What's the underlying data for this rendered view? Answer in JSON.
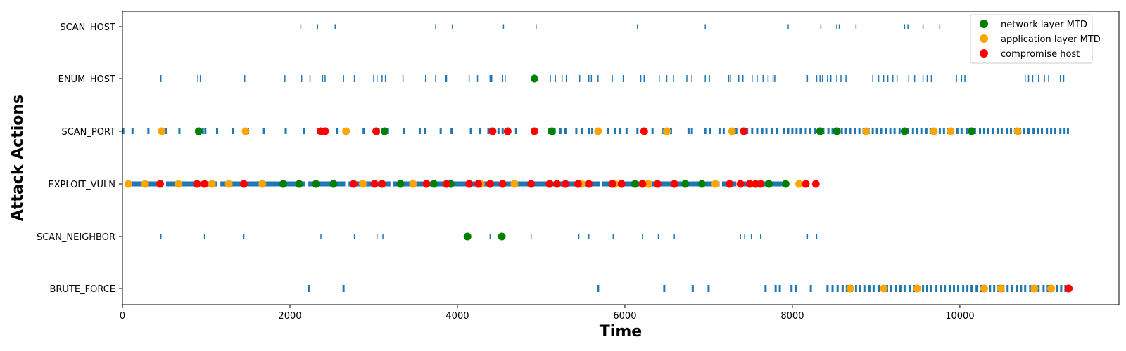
{
  "chart_data": {
    "type": "scatter",
    "title": "",
    "xlabel": "Time",
    "ylabel": "Attack Actions",
    "xlim": [
      0,
      11900
    ],
    "xticks": [
      0,
      2000,
      4000,
      6000,
      8000,
      10000
    ],
    "xtick_labels": [
      "0",
      "2000",
      "4000",
      "6000",
      "8000",
      "10000"
    ],
    "categories": [
      "SCAN_HOST",
      "ENUM_HOST",
      "SCAN_PORT",
      "EXPLOIT_VULN",
      "SCAN_NEIGHBOR",
      "BRUTE_FORCE"
    ],
    "grid": false,
    "legend_position": "top-right",
    "action_color": "#1f77b4",
    "actions": {
      "SCAN_HOST": [
        2130,
        2330,
        2540,
        3740,
        3940,
        4550,
        4940,
        6150,
        6960,
        7950,
        8340,
        8530,
        8560,
        8760,
        9340,
        9380,
        9560,
        9760
      ],
      "ENUM_HOST": [
        460,
        900,
        930,
        1460,
        1940,
        2140,
        2240,
        2390,
        2420,
        2640,
        2770,
        3000,
        3040,
        3100,
        3140,
        3350,
        3620,
        3740,
        3860,
        3870,
        4140,
        4240,
        4390,
        4410,
        4540,
        4570,
        4920,
        5110,
        5170,
        5250,
        5300,
        5460,
        5570,
        5600,
        5680,
        5850,
        5980,
        6190,
        6230,
        6410,
        6500,
        6580,
        6740,
        6800,
        6960,
        7010,
        7240,
        7260,
        7360,
        7410,
        7520,
        7580,
        7650,
        7710,
        7770,
        7790,
        8180,
        8290,
        8330,
        8360,
        8420,
        8460,
        8530,
        8580,
        8640,
        8960,
        9030,
        9090,
        9140,
        9200,
        9250,
        9390,
        9460,
        9560,
        9610,
        9660,
        9960,
        10020,
        10060,
        10780,
        10820,
        10870,
        10940,
        11010,
        11060,
        11200,
        11240
      ],
      "SCAN_PORT": [
        10,
        120,
        310,
        460,
        490,
        520,
        680,
        960,
        990,
        1130,
        1320,
        1500,
        1690,
        1950,
        2170,
        2340,
        2560,
        2690,
        2880,
        3060,
        3170,
        3360,
        3550,
        3610,
        3800,
        3930,
        4160,
        4270,
        4370,
        4490,
        4540,
        4700,
        4900,
        5090,
        5160,
        5230,
        5290,
        5420,
        5490,
        5570,
        5610,
        5670,
        5800,
        5880,
        5940,
        6020,
        6150,
        6240,
        6330,
        6460,
        6550,
        6760,
        6800,
        6960,
        7020,
        7130,
        7180,
        7260,
        7330,
        7400,
        7460,
        7520,
        7580,
        7640,
        7690,
        7760,
        7820,
        7900,
        7950,
        8000,
        8050,
        8100,
        8160,
        8210,
        8270,
        8320,
        8370,
        8430,
        8480,
        8530,
        8590,
        8640,
        8690,
        8750,
        8800,
        8850,
        8910,
        8960,
        9010,
        9060,
        9120,
        9170,
        9220,
        9280,
        9330,
        9380,
        9440,
        9490,
        9540,
        9600,
        9650,
        9700,
        9760,
        9810,
        9860,
        9920,
        9970,
        10020,
        10080,
        10130,
        10180,
        10240,
        10290,
        10340,
        10400,
        10450,
        10500,
        10560,
        10610,
        10660,
        10720,
        10770,
        10820,
        10880,
        10930,
        10980,
        11040,
        11090,
        11140,
        11200,
        11250,
        11290
      ],
      "EXPLOIT_VULN": [],
      "SCAN_NEIGHBOR": [
        460,
        980,
        1450,
        2370,
        2770,
        3040,
        3110,
        4120,
        4390,
        4540,
        4880,
        5450,
        5570,
        5860,
        6210,
        6400,
        6590,
        7380,
        7430,
        7510,
        7620,
        8180,
        8290
      ],
      "BRUTE_FORCE": [
        2230,
        2640,
        5680,
        6470,
        6810,
        7000,
        7680,
        7800,
        7850,
        7990,
        8040,
        8220,
        8420,
        8480,
        8540,
        8600,
        8650,
        8710,
        8760,
        8810,
        8860,
        8920,
        8970,
        9030,
        9080,
        9130,
        9180,
        9240,
        9290,
        9340,
        9400,
        9450,
        9500,
        9560,
        9610,
        9660,
        9720,
        9770,
        9820,
        9880,
        9930,
        9980,
        10040,
        10090,
        10140,
        10200,
        10250,
        10300,
        10360,
        10410,
        10460,
        10520,
        10570,
        10620,
        10680,
        10730,
        10780,
        10840,
        10890,
        10940,
        11000,
        11050,
        11100,
        11160,
        11210,
        11260,
        11290
      ]
    },
    "dense_band": {
      "category": "EXPLOIT_VULN",
      "segments": [
        [
          90,
          480
        ],
        [
          520,
          1130
        ],
        [
          1170,
          2180
        ],
        [
          2220,
          2660
        ],
        [
          2700,
          3200
        ],
        [
          3230,
          5700
        ],
        [
          5730,
          5920
        ],
        [
          5950,
          6680
        ],
        [
          6710,
          6920
        ],
        [
          6960,
          7130
        ],
        [
          7160,
          7330
        ],
        [
          7360,
          7620
        ],
        [
          7660,
          7880
        ]
      ]
    },
    "series": [
      {
        "name": "network layer MTD",
        "color": "#008000",
        "points": [
          {
            "x": 910,
            "y": "SCAN_PORT"
          },
          {
            "x": 3130,
            "y": "SCAN_PORT"
          },
          {
            "x": 5130,
            "y": "SCAN_PORT"
          },
          {
            "x": 8330,
            "y": "SCAN_PORT"
          },
          {
            "x": 8530,
            "y": "SCAN_PORT"
          },
          {
            "x": 9340,
            "y": "SCAN_PORT"
          },
          {
            "x": 10140,
            "y": "SCAN_PORT"
          },
          {
            "x": 4920,
            "y": "ENUM_HOST"
          },
          {
            "x": 1920,
            "y": "EXPLOIT_VULN"
          },
          {
            "x": 2110,
            "y": "EXPLOIT_VULN"
          },
          {
            "x": 2310,
            "y": "EXPLOIT_VULN"
          },
          {
            "x": 2520,
            "y": "EXPLOIT_VULN"
          },
          {
            "x": 3320,
            "y": "EXPLOIT_VULN"
          },
          {
            "x": 3720,
            "y": "EXPLOIT_VULN"
          },
          {
            "x": 3920,
            "y": "EXPLOIT_VULN"
          },
          {
            "x": 6120,
            "y": "EXPLOIT_VULN"
          },
          {
            "x": 6720,
            "y": "EXPLOIT_VULN"
          },
          {
            "x": 6920,
            "y": "EXPLOIT_VULN"
          },
          {
            "x": 7720,
            "y": "EXPLOIT_VULN"
          },
          {
            "x": 7920,
            "y": "EXPLOIT_VULN"
          },
          {
            "x": 4120,
            "y": "SCAN_NEIGHBOR"
          },
          {
            "x": 4530,
            "y": "SCAN_NEIGHBOR"
          }
        ]
      },
      {
        "name": "application layer MTD",
        "color": "#ffa500",
        "points": [
          {
            "x": 470,
            "y": "SCAN_PORT"
          },
          {
            "x": 1470,
            "y": "SCAN_PORT"
          },
          {
            "x": 2670,
            "y": "SCAN_PORT"
          },
          {
            "x": 5680,
            "y": "SCAN_PORT"
          },
          {
            "x": 6500,
            "y": "SCAN_PORT"
          },
          {
            "x": 7280,
            "y": "SCAN_PORT"
          },
          {
            "x": 8880,
            "y": "SCAN_PORT"
          },
          {
            "x": 9690,
            "y": "SCAN_PORT"
          },
          {
            "x": 9890,
            "y": "SCAN_PORT"
          },
          {
            "x": 10690,
            "y": "SCAN_PORT"
          },
          {
            "x": 70,
            "y": "EXPLOIT_VULN"
          },
          {
            "x": 270,
            "y": "EXPLOIT_VULN"
          },
          {
            "x": 670,
            "y": "EXPLOIT_VULN"
          },
          {
            "x": 1070,
            "y": "EXPLOIT_VULN"
          },
          {
            "x": 1270,
            "y": "EXPLOIT_VULN"
          },
          {
            "x": 1670,
            "y": "EXPLOIT_VULN"
          },
          {
            "x": 2870,
            "y": "EXPLOIT_VULN"
          },
          {
            "x": 3470,
            "y": "EXPLOIT_VULN"
          },
          {
            "x": 4280,
            "y": "EXPLOIT_VULN"
          },
          {
            "x": 4680,
            "y": "EXPLOIT_VULN"
          },
          {
            "x": 5480,
            "y": "EXPLOIT_VULN"
          },
          {
            "x": 5880,
            "y": "EXPLOIT_VULN"
          },
          {
            "x": 6280,
            "y": "EXPLOIT_VULN"
          },
          {
            "x": 7080,
            "y": "EXPLOIT_VULN"
          },
          {
            "x": 8080,
            "y": "EXPLOIT_VULN"
          },
          {
            "x": 8690,
            "y": "BRUTE_FORCE"
          },
          {
            "x": 9090,
            "y": "BRUTE_FORCE"
          },
          {
            "x": 9490,
            "y": "BRUTE_FORCE"
          },
          {
            "x": 10290,
            "y": "BRUTE_FORCE"
          },
          {
            "x": 10490,
            "y": "BRUTE_FORCE"
          },
          {
            "x": 10890,
            "y": "BRUTE_FORCE"
          },
          {
            "x": 11090,
            "y": "BRUTE_FORCE"
          }
        ]
      },
      {
        "name": "compromise host",
        "color": "#ff0000",
        "points": [
          {
            "x": 2370,
            "y": "SCAN_PORT"
          },
          {
            "x": 2420,
            "y": "SCAN_PORT"
          },
          {
            "x": 3030,
            "y": "SCAN_PORT"
          },
          {
            "x": 4420,
            "y": "SCAN_PORT"
          },
          {
            "x": 4600,
            "y": "SCAN_PORT"
          },
          {
            "x": 4920,
            "y": "SCAN_PORT"
          },
          {
            "x": 6230,
            "y": "SCAN_PORT"
          },
          {
            "x": 7420,
            "y": "SCAN_PORT"
          },
          {
            "x": 450,
            "y": "EXPLOIT_VULN"
          },
          {
            "x": 890,
            "y": "EXPLOIT_VULN"
          },
          {
            "x": 980,
            "y": "EXPLOIT_VULN"
          },
          {
            "x": 1450,
            "y": "EXPLOIT_VULN"
          },
          {
            "x": 2760,
            "y": "EXPLOIT_VULN"
          },
          {
            "x": 3010,
            "y": "EXPLOIT_VULN"
          },
          {
            "x": 3100,
            "y": "EXPLOIT_VULN"
          },
          {
            "x": 3630,
            "y": "EXPLOIT_VULN"
          },
          {
            "x": 3870,
            "y": "EXPLOIT_VULN"
          },
          {
            "x": 4140,
            "y": "EXPLOIT_VULN"
          },
          {
            "x": 4250,
            "y": "EXPLOIT_VULN"
          },
          {
            "x": 4390,
            "y": "EXPLOIT_VULN"
          },
          {
            "x": 4540,
            "y": "EXPLOIT_VULN"
          },
          {
            "x": 4880,
            "y": "EXPLOIT_VULN"
          },
          {
            "x": 5100,
            "y": "EXPLOIT_VULN"
          },
          {
            "x": 5190,
            "y": "EXPLOIT_VULN"
          },
          {
            "x": 5290,
            "y": "EXPLOIT_VULN"
          },
          {
            "x": 5440,
            "y": "EXPLOIT_VULN"
          },
          {
            "x": 5570,
            "y": "EXPLOIT_VULN"
          },
          {
            "x": 5850,
            "y": "EXPLOIT_VULN"
          },
          {
            "x": 5960,
            "y": "EXPLOIT_VULN"
          },
          {
            "x": 6210,
            "y": "EXPLOIT_VULN"
          },
          {
            "x": 6390,
            "y": "EXPLOIT_VULN"
          },
          {
            "x": 6590,
            "y": "EXPLOIT_VULN"
          },
          {
            "x": 7250,
            "y": "EXPLOIT_VULN"
          },
          {
            "x": 7380,
            "y": "EXPLOIT_VULN"
          },
          {
            "x": 7490,
            "y": "EXPLOIT_VULN"
          },
          {
            "x": 7560,
            "y": "EXPLOIT_VULN"
          },
          {
            "x": 7620,
            "y": "EXPLOIT_VULN"
          },
          {
            "x": 8160,
            "y": "EXPLOIT_VULN"
          },
          {
            "x": 8280,
            "y": "EXPLOIT_VULN"
          },
          {
            "x": 11300,
            "y": "BRUTE_FORCE"
          }
        ]
      }
    ]
  }
}
